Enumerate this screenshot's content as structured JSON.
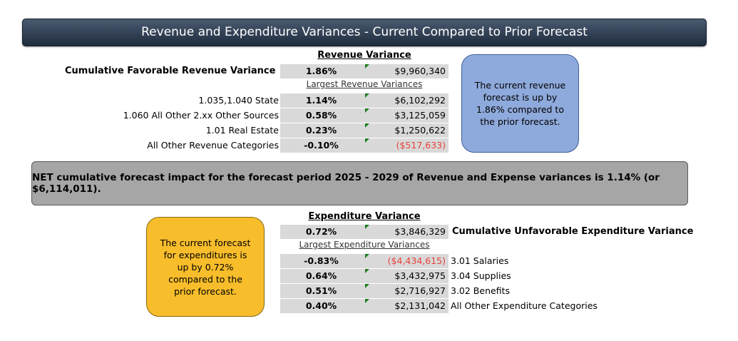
{
  "title": "Revenue and Expenditure Variances - Current Compared to Prior Forecast",
  "revenue": {
    "heading": "Revenue Variance",
    "cumulative": {
      "label": "Cumulative Favorable Revenue Variance",
      "pct": "1.86%",
      "amount": "$9,960,340"
    },
    "subheading": "Largest Revenue Variances",
    "rows": [
      {
        "label": "1.035,1.040 State",
        "pct": "1.14%",
        "amount": "$6,102,292"
      },
      {
        "label": "1.060 All Other 2.xx Other Sources",
        "pct": "0.58%",
        "amount": "$3,125,059"
      },
      {
        "label": "1.01 Real Estate",
        "pct": "0.23%",
        "amount": "$1,250,622"
      },
      {
        "label": "All Other Revenue Categories",
        "pct": "-0.10%",
        "amount": "($517,633)"
      }
    ],
    "note": "The current revenue forecast is up by 1.86% compared to the prior forecast."
  },
  "net_impact": "NET cumulative forecast impact for the forecast period 2025 - 2029 of Revenue and Expense variances is 1.14% (or $6,114,011).",
  "expenditure": {
    "heading": "Expenditure Variance",
    "cumulative": {
      "label": "Cumulative Unfavorable Expenditure Variance",
      "pct": "0.72%",
      "amount": "$3,846,329"
    },
    "subheading": "Largest Expenditure Variances",
    "rows": [
      {
        "label": "3.01 Salaries",
        "pct": "-0.83%",
        "amount": "($4,434,615)"
      },
      {
        "label": "3.04 Supplies",
        "pct": "0.64%",
        "amount": "$3,432,975"
      },
      {
        "label": "3.02 Benefits",
        "pct": "0.51%",
        "amount": "$2,716,927"
      },
      {
        "label": "All Other Expenditure Categories",
        "pct": "0.40%",
        "amount": "$2,131,042"
      }
    ],
    "note": "The current forecast for expenditures is up by 0.72% compared to the prior forecast."
  },
  "colors": {
    "negative": "#e8413b",
    "revenue_note": "#8ea9db",
    "expenditure_note": "#f7bd2b",
    "net_box": "#a6a6a6"
  }
}
